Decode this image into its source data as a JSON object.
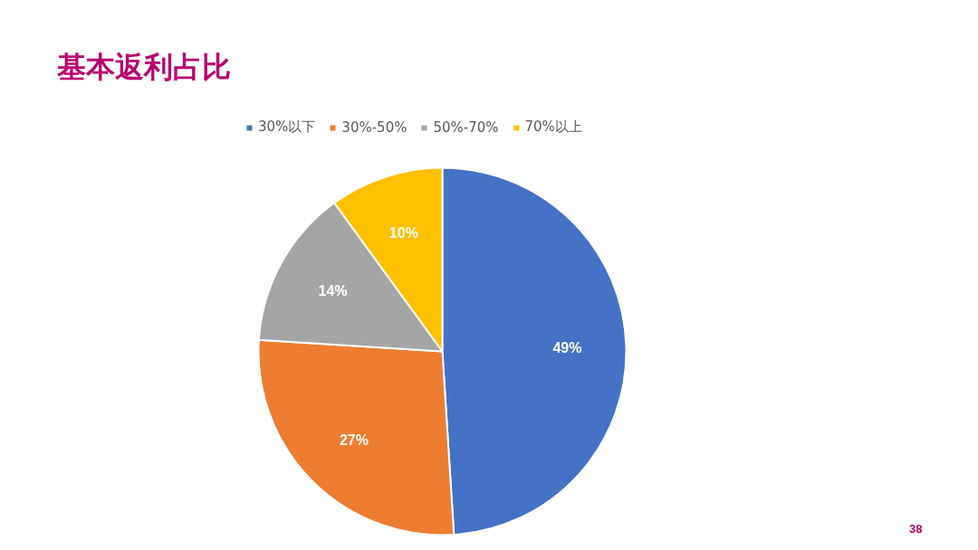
{
  "chart_data": {
    "type": "pie",
    "title": "基本返利占比",
    "categories": [
      "30%以下",
      "30%-50%",
      "50%-70%",
      "70%以上"
    ],
    "values": [
      49,
      27,
      14,
      10
    ],
    "colors": [
      "#4472c4",
      "#ed7d31",
      "#a5a5a5",
      "#ffc000"
    ],
    "value_labels": [
      "49%",
      "27%",
      "14%",
      "10%"
    ],
    "legend": "top",
    "annotations": [
      "38"
    ]
  }
}
